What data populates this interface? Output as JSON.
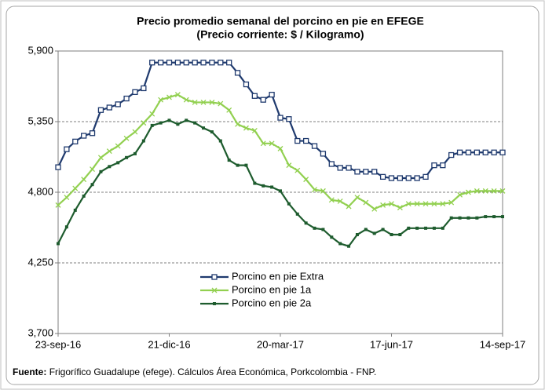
{
  "chart_data": {
    "type": "line",
    "title": "Precio promedio semanal del porcino en pie en EFEGE",
    "subtitle": "(Precio corriente: $ / Kilogramo)",
    "categories": [
      "23-sep-16",
      null,
      null,
      null,
      null,
      null,
      null,
      null,
      null,
      null,
      null,
      null,
      null,
      "21-dic-16",
      null,
      null,
      null,
      null,
      null,
      null,
      null,
      null,
      null,
      null,
      null,
      null,
      "20-mar-17",
      null,
      null,
      null,
      null,
      null,
      null,
      null,
      null,
      null,
      null,
      null,
      null,
      "17-jun-17",
      null,
      null,
      null,
      null,
      null,
      null,
      null,
      null,
      null,
      null,
      null,
      null,
      "14-sep-17"
    ],
    "series": [
      {
        "name": "Porcino en pie Extra",
        "color": "#1f3a6e",
        "marker": "square-open",
        "values": [
          4995,
          5135,
          5195,
          5240,
          5260,
          5440,
          5460,
          5485,
          5530,
          5580,
          5610,
          5810,
          5810,
          5810,
          5810,
          5810,
          5810,
          5810,
          5810,
          5810,
          5810,
          5730,
          5640,
          5550,
          5520,
          5560,
          5380,
          5370,
          5200,
          5200,
          5160,
          5100,
          5020,
          4990,
          4990,
          4960,
          4960,
          4960,
          4920,
          4910,
          4910,
          4910,
          4910,
          4920,
          5010,
          5010,
          5090,
          5110,
          5110,
          5110,
          5110,
          5110,
          5110
        ]
      },
      {
        "name": "Porcino en pie 1a",
        "color": "#92d050",
        "marker": "x",
        "values": [
          4700,
          4760,
          4830,
          4900,
          4980,
          5070,
          5120,
          5160,
          5220,
          5270,
          5340,
          5410,
          5520,
          5540,
          5560,
          5520,
          5500,
          5500,
          5500,
          5490,
          5440,
          5330,
          5300,
          5280,
          5180,
          5180,
          5140,
          5010,
          4970,
          4900,
          4820,
          4810,
          4740,
          4730,
          4690,
          4760,
          4720,
          4670,
          4700,
          4710,
          4680,
          4710,
          4710,
          4710,
          4710,
          4710,
          4720,
          4780,
          4800,
          4810,
          4810,
          4810,
          4810
        ]
      },
      {
        "name": "Porcino en pie 2a",
        "color": "#1e5c2e",
        "marker": "square",
        "values": [
          4400,
          4530,
          4660,
          4770,
          4860,
          4960,
          5000,
          5030,
          5070,
          5100,
          5200,
          5320,
          5340,
          5360,
          5330,
          5360,
          5340,
          5300,
          5270,
          5200,
          5050,
          5010,
          5010,
          4870,
          4850,
          4840,
          4810,
          4710,
          4630,
          4560,
          4520,
          4510,
          4450,
          4400,
          4380,
          4470,
          4510,
          4480,
          4510,
          4470,
          4470,
          4520,
          4520,
          4520,
          4520,
          4520,
          4600,
          4600,
          4600,
          4600,
          4610,
          4610,
          4610
        ]
      }
    ],
    "ylim": [
      3700,
      5900
    ],
    "yticks": [
      {
        "value": 3700,
        "label": "3,700"
      },
      {
        "value": 4250,
        "label": "4,250"
      },
      {
        "value": 4800,
        "label": "4,800"
      },
      {
        "value": 5350,
        "label": "5,350"
      },
      {
        "value": 5900,
        "label": "5,900"
      }
    ],
    "grid": true,
    "legend": "bottom-center",
    "source_label": "Fuente:",
    "source_text": "Frigorífico Guadalupe (efege). Cálculos Área Económica, Porkcolombia - FNP."
  }
}
